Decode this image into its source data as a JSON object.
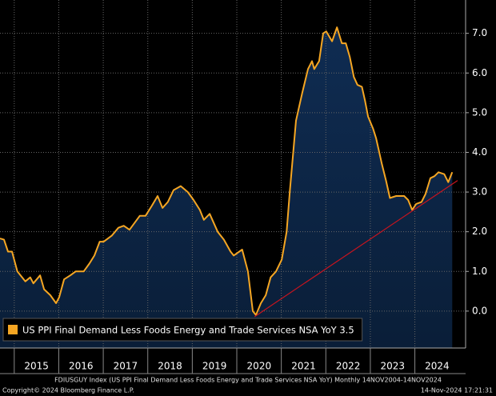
{
  "chart_data": {
    "type": "area",
    "series": [
      {
        "name": "US PPI Final Demand Less Foods Energy and Trade Services NSA YoY",
        "color": "#f5a623",
        "fill": "#0c2444",
        "x": [
          2014.68,
          2014.77,
          2014.86,
          2014.95,
          2015.07,
          2015.25,
          2015.36,
          2015.43,
          2015.58,
          2015.67,
          2015.81,
          2015.94,
          2016.01,
          2016.12,
          2016.26,
          2016.38,
          2016.56,
          2016.69,
          2016.8,
          2016.92,
          2017.01,
          2017.19,
          2017.34,
          2017.46,
          2017.59,
          2017.82,
          2017.95,
          2018.09,
          2018.22,
          2018.33,
          2018.45,
          2018.58,
          2018.74,
          2018.9,
          2019.03,
          2019.17,
          2019.26,
          2019.39,
          2019.57,
          2019.71,
          2019.86,
          2019.93,
          2020.12,
          2020.25,
          2020.36,
          2020.43,
          2020.54,
          2020.65,
          2020.76,
          2020.88,
          2021.01,
          2021.12,
          2021.19,
          2021.33,
          2021.47,
          2021.6,
          2021.69,
          2021.74,
          2021.85,
          2021.94,
          2022.01,
          2022.14,
          2022.25,
          2022.36,
          2022.45,
          2022.54,
          2022.63,
          2022.71,
          2022.81,
          2022.88,
          2022.95,
          2023.06,
          2023.13,
          2023.26,
          2023.35,
          2023.44,
          2023.58,
          2023.76,
          2023.85,
          2023.94,
          2024.03,
          2024.15,
          2024.24,
          2024.35,
          2024.44,
          2024.53,
          2024.66,
          2024.75,
          2024.84
        ],
        "values": [
          1.83,
          1.8,
          1.5,
          1.5,
          1.0,
          0.75,
          0.85,
          0.7,
          0.9,
          0.55,
          0.4,
          0.2,
          0.35,
          0.8,
          0.9,
          1.0,
          1.0,
          1.2,
          1.4,
          1.75,
          1.75,
          1.9,
          2.1,
          2.15,
          2.05,
          2.4,
          2.4,
          2.65,
          2.9,
          2.6,
          2.75,
          3.05,
          3.15,
          3.0,
          2.8,
          2.55,
          2.3,
          2.45,
          2.0,
          1.8,
          1.5,
          1.4,
          1.55,
          1.0,
          0.0,
          -0.1,
          0.2,
          0.4,
          0.85,
          1.0,
          1.3,
          2.0,
          3.0,
          4.8,
          5.5,
          6.1,
          6.3,
          6.1,
          6.3,
          7.0,
          7.05,
          6.8,
          7.15,
          6.75,
          6.75,
          6.4,
          5.9,
          5.7,
          5.65,
          5.3,
          4.9,
          4.6,
          4.35,
          3.7,
          3.3,
          2.85,
          2.9,
          2.9,
          2.8,
          2.55,
          2.7,
          2.75,
          2.95,
          3.35,
          3.4,
          3.5,
          3.45,
          3.25,
          3.5
        ]
      }
    ],
    "trendline": {
      "color": "#c8141e",
      "x": [
        2020.4,
        2024.96
      ],
      "values": [
        -0.14,
        3.29
      ]
    },
    "xlim": [
      2014.68,
      2025.14
    ],
    "xticks": [
      2015,
      2016,
      2017,
      2018,
      2019,
      2020,
      2021,
      2022,
      2023,
      2024
    ],
    "ylim": [
      -0.93,
      7.84
    ],
    "yticks": [
      {
        "value": 0,
        "label": "0.0"
      },
      {
        "value": 1,
        "label": "1.0"
      },
      {
        "value": 2,
        "label": "2.0"
      },
      {
        "value": 3,
        "label": "3.0"
      },
      {
        "value": 4,
        "label": "4.0"
      },
      {
        "value": 5,
        "label": "5.0"
      },
      {
        "value": 6,
        "label": "6.0"
      },
      {
        "value": 7,
        "label": "7.0"
      }
    ],
    "grid": true,
    "legend": "bottom-left"
  },
  "footer": {
    "source": "FDIUSGUY Index (US PPI Final Demand Less Foods Energy and Trade Services NSA YoY)  Monthly 14NOV2004-14NOV2024",
    "copyright": "Copyright© 2024 Bloomberg Finance L.P.",
    "timestamp": "14-Nov-2024 17:21:31"
  }
}
